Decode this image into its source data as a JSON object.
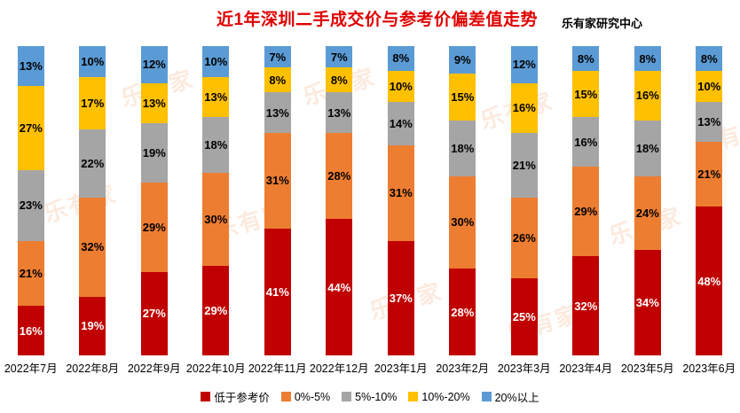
{
  "header": {
    "title": "近1年深圳二手成交价与参考价偏差值走势",
    "source": "乐有家研究中心"
  },
  "watermark": {
    "text": "乐有家"
  },
  "colors": {
    "title": "#e00000",
    "below_ref": "#c00000",
    "pct_0_5": "#ed7d31",
    "pct_5_10": "#a5a5a5",
    "pct_10_20": "#ffc000",
    "pct_20_plus": "#5b9bd5"
  },
  "chart_data": {
    "type": "bar",
    "stacked": true,
    "percent_stacked": true,
    "title": "近1年深圳二手成交价与参考价偏差值走势",
    "xlabel": "",
    "ylabel": "",
    "ylim": [
      0,
      100
    ],
    "grid": false,
    "legend_position": "bottom",
    "value_suffix": "%",
    "categories": [
      "2022年7月",
      "2022年8月",
      "2022年9月",
      "2022年10月",
      "2022年11月",
      "2022年12月",
      "2023年1月",
      "2023年2月",
      "2023年3月",
      "2023年4月",
      "2023年5月",
      "2023年6月"
    ],
    "series": [
      {
        "name": "低于参考价",
        "color": "#c00000",
        "label_color": "#ffffff",
        "values": [
          16,
          19,
          27,
          29,
          41,
          44,
          37,
          28,
          25,
          32,
          34,
          48
        ]
      },
      {
        "name": "0%-5%",
        "color": "#ed7d31",
        "label_color": "#000000",
        "values": [
          21,
          32,
          29,
          30,
          31,
          28,
          31,
          30,
          26,
          29,
          24,
          21
        ]
      },
      {
        "name": "5%-10%",
        "color": "#a5a5a5",
        "label_color": "#000000",
        "values": [
          23,
          22,
          19,
          18,
          13,
          13,
          14,
          18,
          21,
          16,
          18,
          13
        ]
      },
      {
        "name": "10%-20%",
        "color": "#ffc000",
        "label_color": "#000000",
        "values": [
          27,
          17,
          13,
          13,
          8,
          8,
          10,
          15,
          16,
          15,
          16,
          10
        ]
      },
      {
        "name": "20%以上",
        "color": "#5b9bd5",
        "label_color": "#000000",
        "values": [
          13,
          10,
          12,
          10,
          7,
          7,
          8,
          9,
          12,
          8,
          8,
          8
        ]
      }
    ]
  }
}
